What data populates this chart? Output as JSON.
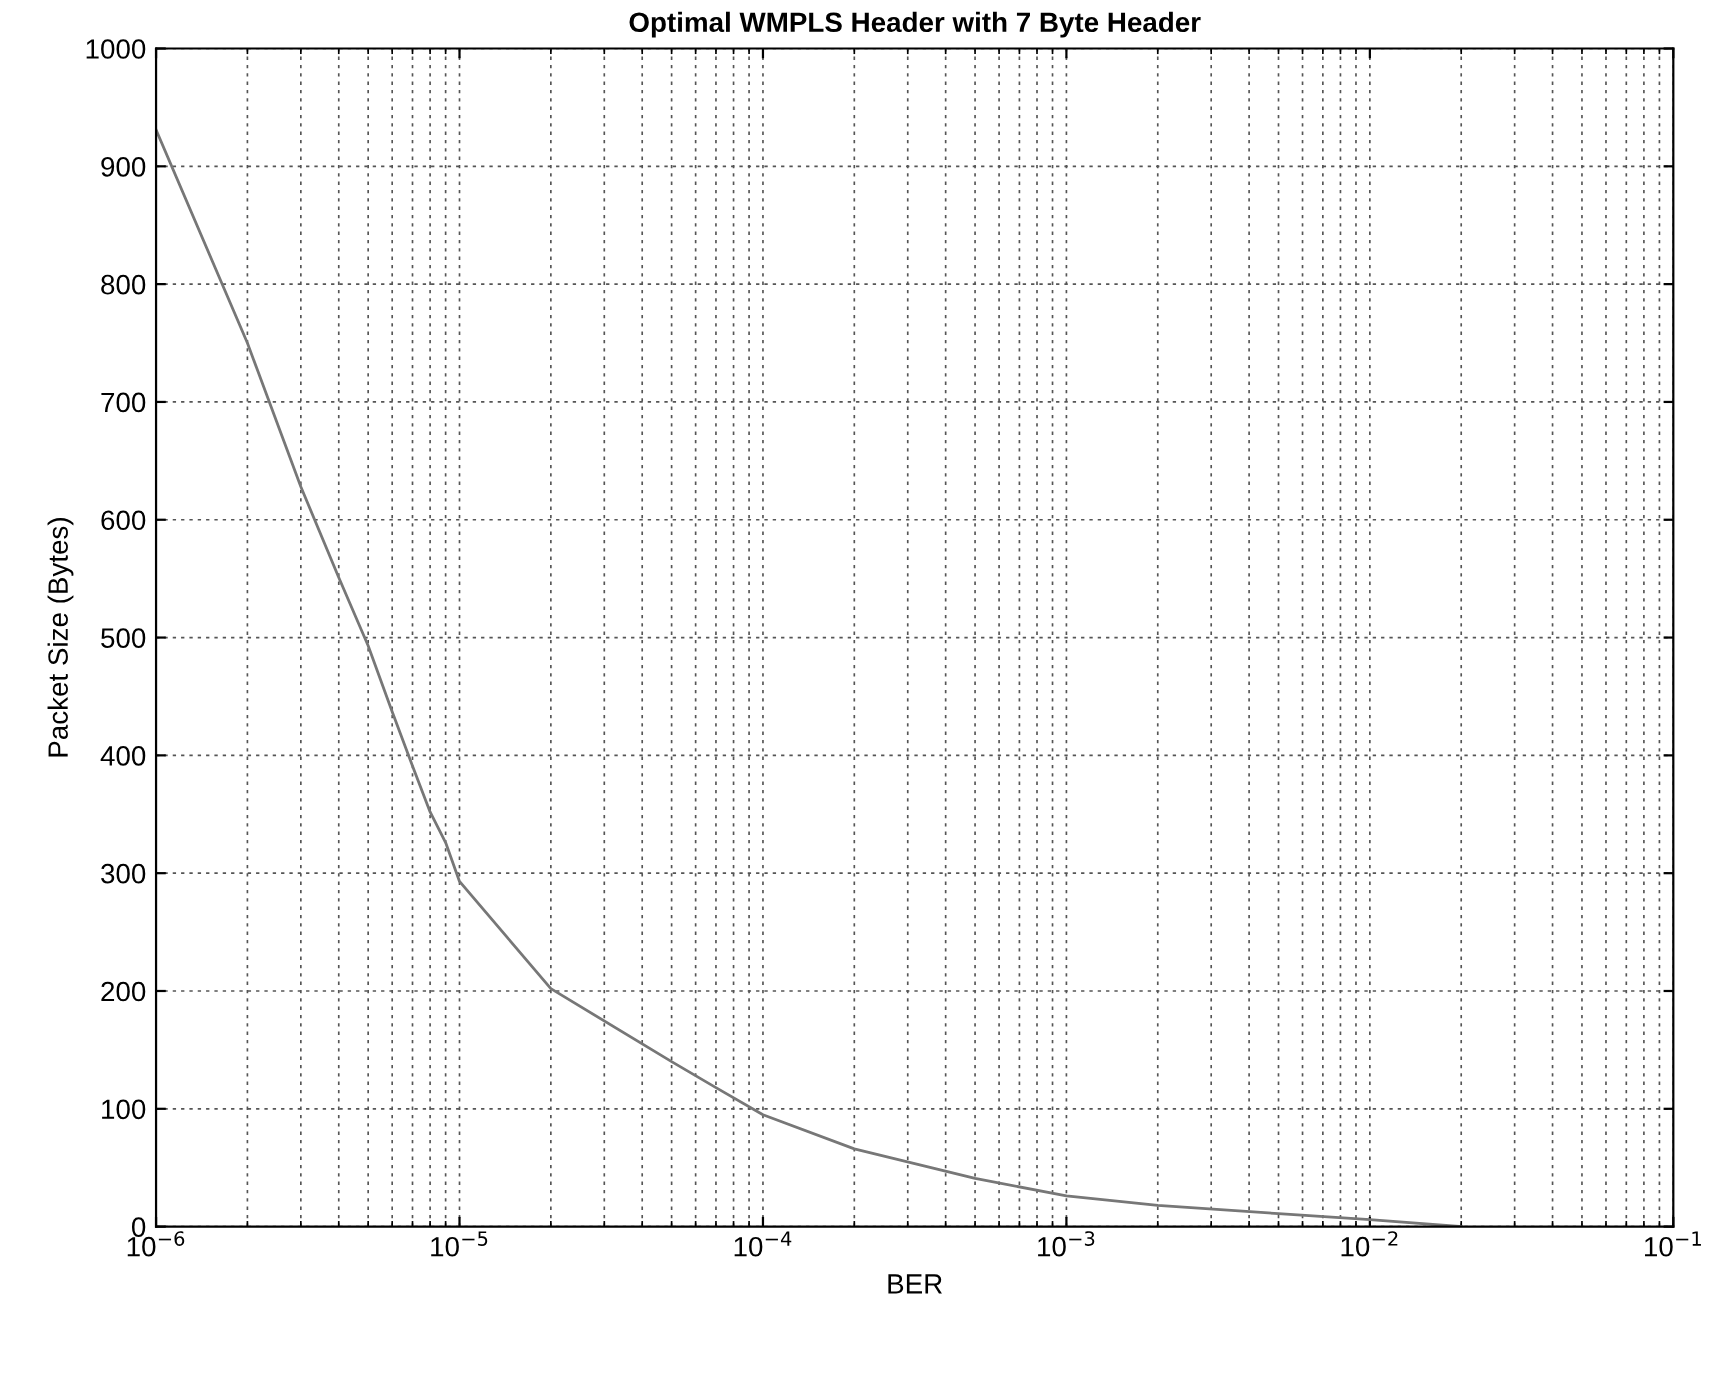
{
  "chart_data": {
    "type": "line",
    "title": "Optimal WMPLS Header with 7 Byte Header",
    "xlabel": "BER",
    "ylabel": "Packet Size (Bytes)",
    "log": "x",
    "grid": true,
    "xlim": [
      1e-06,
      0.1
    ],
    "ylim": [
      0,
      1000
    ],
    "xticks": [
      {
        "value": 1e-06,
        "label": "10$^{−6}$"
      },
      {
        "value": 1e-05,
        "label": "10$^{−5}$"
      },
      {
        "value": 0.0001,
        "label": "10$^{−4}$"
      },
      {
        "value": 0.001,
        "label": "10$^{−3}$"
      },
      {
        "value": 0.01,
        "label": "10$^{−2}$"
      },
      {
        "value": 0.1,
        "label": "10$^{−1}$"
      }
    ],
    "yticks": [
      0,
      100,
      200,
      300,
      400,
      500,
      600,
      700,
      800,
      900,
      1000
    ],
    "series": [
      {
        "color": "#777777",
        "x": [
          1e-06,
          2e-06,
          3e-06,
          4e-06,
          5e-06,
          6e-06,
          7e-06,
          8e-06,
          9e-06,
          1e-05,
          2e-05,
          5e-05,
          7e-05,
          0.0001,
          0.0002,
          0.0005,
          0.001,
          0.002,
          0.005,
          0.01,
          0.02
        ],
        "values": [
          931,
          750,
          628,
          551,
          493,
          437,
          391,
          352,
          326,
          293,
          202,
          140,
          118,
          95,
          66,
          41,
          26,
          18,
          11,
          6,
          0
        ]
      }
    ]
  }
}
